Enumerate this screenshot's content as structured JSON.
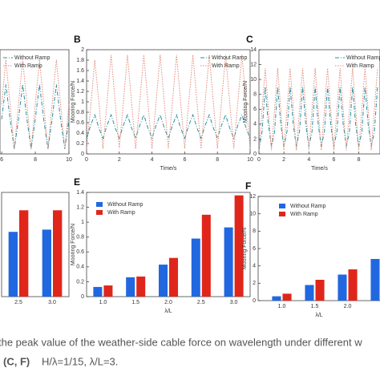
{
  "chart_data": [
    {
      "type": "line",
      "xlabel": null,
      "x": [
        6,
        6.25,
        6.5,
        6.75,
        7,
        7.25,
        7.5,
        7.75,
        8,
        8.25,
        8.5,
        8.75,
        9,
        9.25,
        9.5,
        9.75,
        10
      ],
      "xlim": [
        5.9,
        10
      ],
      "xticks": [
        6,
        8,
        10
      ],
      "ylim": [
        0,
        2.1
      ],
      "series": [
        {
          "name": "Without Ramp",
          "color": "#2a8fa0",
          "dash": "5 2 1 2",
          "values": [
            0.7,
            1.4,
            0.7,
            0.1,
            0.7,
            1.4,
            0.7,
            0.1,
            0.7,
            1.4,
            0.7,
            0.1,
            0.7,
            1.4,
            0.7,
            0.1,
            0.7
          ]
        },
        {
          "name": "With Ramp",
          "color": "#e08a7a",
          "dash": "1.5 1.5",
          "values": [
            1.0,
            1.9,
            1.0,
            0.1,
            1.0,
            1.9,
            1.0,
            0.1,
            1.0,
            1.9,
            1.0,
            0.1,
            1.0,
            1.9,
            1.0,
            0.1,
            1.0
          ]
        }
      ]
    },
    {
      "type": "line",
      "label": "B",
      "xlabel": "Time/s",
      "ylabel": "Mooring Force/N",
      "x": [
        0,
        0.25,
        0.5,
        0.75,
        1,
        1.25,
        1.5,
        1.75,
        2,
        2.25,
        2.5,
        2.75,
        3,
        3.25,
        3.5,
        3.75,
        4,
        4.25,
        4.5,
        4.75,
        5,
        5.25,
        5.5,
        5.75,
        6,
        6.25,
        6.5,
        6.75,
        7,
        7.25,
        7.5,
        7.75,
        8,
        8.25,
        8.5,
        8.75,
        9,
        9.25,
        9.5,
        9.75,
        10
      ],
      "xlim": [
        0,
        10
      ],
      "xticks": [
        0,
        2,
        4,
        6,
        8,
        10
      ],
      "ylim": [
        0,
        2
      ],
      "yticks": [
        0,
        0.2,
        0.4,
        0.6,
        0.8,
        1,
        1.2,
        1.4,
        1.6,
        1.8,
        2
      ],
      "series": [
        {
          "name": "Without Ramp",
          "color": "#2a8fa0",
          "dash": "5 2 1 2",
          "values": [
            0.3,
            0.55,
            0.75,
            0.5,
            0.3,
            0.55,
            0.75,
            0.5,
            0.3,
            0.55,
            0.75,
            0.5,
            0.3,
            0.55,
            0.75,
            0.5,
            0.3,
            0.55,
            0.75,
            0.5,
            0.3,
            0.55,
            0.75,
            0.5,
            0.3,
            0.55,
            0.75,
            0.5,
            0.3,
            0.55,
            0.75,
            0.5,
            0.3,
            0.55,
            0.75,
            0.5,
            0.3,
            0.55,
            0.75,
            0.5,
            0.3
          ]
        },
        {
          "name": "With Ramp",
          "color": "#e08a7a",
          "dash": "1.5 1.5",
          "values": [
            0.1,
            0.9,
            1.8,
            1.0,
            0.1,
            1.0,
            1.9,
            1.0,
            0.1,
            1.0,
            1.9,
            1.0,
            0.1,
            1.0,
            1.9,
            1.0,
            0.1,
            1.0,
            1.9,
            1.0,
            0.1,
            1.0,
            1.9,
            1.0,
            0.1,
            1.0,
            1.9,
            1.0,
            0.1,
            1.0,
            1.9,
            1.0,
            0.1,
            1.0,
            1.9,
            1.0,
            0.1,
            1.0,
            1.9,
            1.0,
            0.1
          ]
        }
      ]
    },
    {
      "type": "line",
      "label": "C",
      "xlabel": "Time/s",
      "ylabel": "Mooring Force/N",
      "x": [
        0,
        0.25,
        0.5,
        0.75,
        1,
        1.25,
        1.5,
        1.75,
        2,
        2.25,
        2.5,
        2.75,
        3,
        3.25,
        3.5,
        3.75,
        4,
        4.25,
        4.5,
        4.75,
        5,
        5.25,
        5.5,
        5.75,
        6,
        6.25,
        6.5,
        6.75,
        7,
        7.25,
        7.5,
        7.75,
        8,
        8.25,
        8.5,
        8.75,
        9,
        9.25,
        9.5
      ],
      "xlim": [
        0,
        9.7
      ],
      "xticks": [
        0,
        2,
        4,
        6,
        8
      ],
      "ylim": [
        0,
        14
      ],
      "yticks": [
        0,
        2,
        4,
        6,
        8,
        10,
        12,
        14
      ],
      "series": [
        {
          "name": "Without Ramp",
          "color": "#2a8fa0",
          "dash": "5 2 1 2",
          "values": [
            0.5,
            3,
            9,
            4,
            1,
            3,
            9,
            4,
            1,
            3,
            9,
            4,
            1,
            3,
            9,
            4,
            1,
            3,
            9,
            4,
            1,
            3,
            9,
            4,
            1,
            3,
            9,
            4,
            1,
            3,
            9,
            4,
            1,
            3,
            9,
            4,
            1,
            3,
            9
          ]
        },
        {
          "name": "With Ramp",
          "color": "#e08a7a",
          "dash": "1.5 1.5",
          "values": [
            0.5,
            6,
            11.5,
            6,
            0.5,
            6,
            11.5,
            6,
            0.5,
            6,
            11.5,
            6,
            0.5,
            6,
            11.5,
            6,
            0.5,
            6,
            11.5,
            6,
            0.5,
            6,
            11.5,
            6,
            0.5,
            6,
            11.5,
            6,
            0.5,
            6,
            11.5,
            6,
            0.5,
            6,
            11.5,
            6,
            0.5,
            6,
            11.5
          ]
        }
      ]
    },
    {
      "type": "bar",
      "categories": [
        "2.5",
        "3.0"
      ],
      "ylim": [
        0,
        1.4
      ],
      "series": [
        {
          "color": "#2168e0",
          "values": [
            0.87,
            0.9
          ]
        },
        {
          "color": "#e0261b",
          "values": [
            1.16,
            1.16
          ]
        }
      ]
    },
    {
      "type": "bar",
      "label": "E",
      "xlabel": "λ/L",
      "ylabel": "Mooring Force/N",
      "categories": [
        "1.0",
        "1.5",
        "2.0",
        "2.5",
        "3.0"
      ],
      "ylim": [
        0,
        1.4
      ],
      "yticks": [
        0,
        0.2,
        0.4,
        0.6,
        0.8,
        1,
        1.2,
        1.4
      ],
      "series": [
        {
          "name": "Without Ramp",
          "color": "#2168e0",
          "values": [
            0.13,
            0.26,
            0.43,
            0.78,
            0.93
          ]
        },
        {
          "name": "With Ramp",
          "color": "#e0261b",
          "values": [
            0.15,
            0.27,
            0.52,
            1.1,
            1.36
          ]
        }
      ]
    },
    {
      "type": "bar",
      "label": "F",
      "xlabel": "λ/L",
      "ylabel": "Mooring Force/N",
      "categories": [
        "1.0",
        "1.5",
        "2.0",
        null
      ],
      "ylim": [
        0,
        12
      ],
      "yticks": [
        0,
        2,
        4,
        6,
        8,
        10,
        12
      ],
      "series": [
        {
          "name": "Without Ramp",
          "color": "#2168e0",
          "values": [
            0.5,
            1.8,
            3.0,
            4.8
          ]
        },
        {
          "name": "With Ramp",
          "color": "#e0261b",
          "values": [
            0.8,
            2.4,
            3.6,
            null
          ]
        }
      ]
    }
  ],
  "caption": {
    "line1": "the peak value of the weather-side cable force on wavelength under different w",
    "line2_bold": "(C, F)",
    "line2": "H/λ=1/15, λ/L=3."
  }
}
